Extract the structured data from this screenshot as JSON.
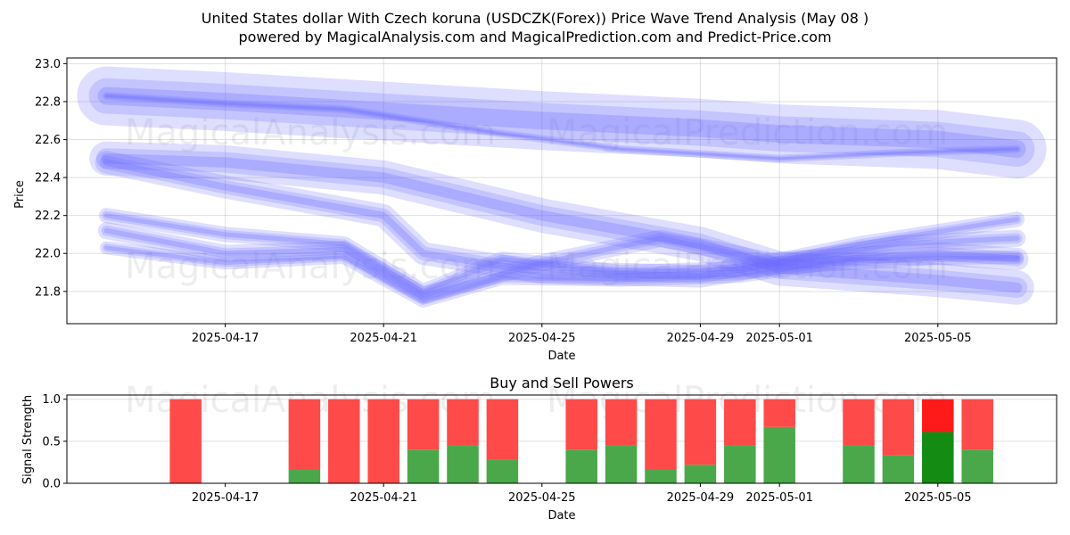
{
  "title_line1": "United States dollar With Czech koruna (USDCZK(Forex)) Price Wave Trend Analysis (May 08 )",
  "title_line2": "powered by MagicalAnalysis.com and MagicalPrediction.com and Predict-Price.com",
  "watermark_left": "MagicalAnalysis.com",
  "watermark_right": "MagicalPrediction.com",
  "colors": {
    "wave": "#6b6bff",
    "buy": "#4aa84a",
    "sell": "#ff4a4a",
    "buy_highlight": "#148c14",
    "sell_highlight": "#ff1a1a"
  },
  "chart_data": [
    {
      "type": "area",
      "title": "",
      "xlabel": "Date",
      "ylabel": "Price",
      "xlim": [
        "2025-04-13",
        "2025-05-08"
      ],
      "ylim": [
        21.63,
        23.03
      ],
      "x_ticks": [
        "2025-04-17",
        "2025-04-21",
        "2025-04-25",
        "2025-04-29",
        "2025-05-01",
        "2025-05-05"
      ],
      "y_ticks": [
        21.8,
        22.0,
        22.2,
        22.4,
        22.6,
        22.8,
        23.0
      ],
      "grid": true,
      "series": [
        {
          "x": [
            "2025-04-14",
            "2025-04-17",
            "2025-04-21",
            "2025-04-25",
            "2025-04-29",
            "2025-05-01",
            "2025-05-05",
            "2025-05-07"
          ],
          "values": [
            22.83,
            22.8,
            22.75,
            22.7,
            22.66,
            22.63,
            22.6,
            22.55
          ],
          "band": 0.31
        },
        {
          "x": [
            "2025-04-14",
            "2025-04-17",
            "2025-04-20",
            "2025-04-24",
            "2025-04-27",
            "2025-05-01",
            "2025-05-04",
            "2025-05-07"
          ],
          "values": [
            22.83,
            22.79,
            22.76,
            22.63,
            22.55,
            22.5,
            22.53,
            22.55
          ],
          "band": 0.04
        },
        {
          "x": [
            "2025-04-14",
            "2025-04-17",
            "2025-04-21",
            "2025-04-25",
            "2025-04-29",
            "2025-05-01",
            "2025-05-05",
            "2025-05-07"
          ],
          "values": [
            22.5,
            22.48,
            22.4,
            22.2,
            22.05,
            21.92,
            21.86,
            21.82
          ],
          "band": 0.18
        },
        {
          "x": [
            "2025-04-14",
            "2025-04-17",
            "2025-04-21",
            "2025-04-22",
            "2025-04-25",
            "2025-04-29",
            "2025-05-01",
            "2025-05-05",
            "2025-05-07"
          ],
          "values": [
            22.48,
            22.35,
            22.2,
            22.0,
            21.9,
            21.88,
            21.95,
            22.0,
            21.97
          ],
          "band": 0.12
        },
        {
          "x": [
            "2025-04-14",
            "2025-04-17",
            "2025-04-20",
            "2025-04-22",
            "2025-04-24",
            "2025-04-27",
            "2025-04-30",
            "2025-05-03",
            "2025-05-07"
          ],
          "values": [
            22.2,
            22.1,
            22.05,
            21.8,
            21.97,
            21.9,
            21.92,
            22.05,
            22.18
          ],
          "band": 0.08
        },
        {
          "x": [
            "2025-04-14",
            "2025-04-17",
            "2025-04-20",
            "2025-04-22",
            "2025-04-24",
            "2025-04-27",
            "2025-04-30",
            "2025-05-03",
            "2025-05-07"
          ],
          "values": [
            22.03,
            21.95,
            21.98,
            21.75,
            21.87,
            21.86,
            21.88,
            21.97,
            21.98
          ],
          "band": 0.07
        },
        {
          "x": [
            "2025-04-14",
            "2025-04-17",
            "2025-04-20",
            "2025-04-22",
            "2025-04-25",
            "2025-04-28",
            "2025-05-01",
            "2025-05-04",
            "2025-05-07"
          ],
          "values": [
            22.12,
            22.0,
            22.02,
            21.78,
            21.95,
            22.08,
            21.95,
            22.05,
            22.08
          ],
          "band": 0.09
        }
      ]
    },
    {
      "type": "bar",
      "title": "Buy and Sell Powers",
      "xlabel": "Date",
      "ylabel": "Signal Strength",
      "xlim": [
        "2025-04-13",
        "2025-05-08"
      ],
      "ylim": [
        0,
        1.05
      ],
      "x_ticks": [
        "2025-04-17",
        "2025-04-21",
        "2025-04-25",
        "2025-04-29",
        "2025-05-01",
        "2025-05-05"
      ],
      "y_ticks": [
        0.0,
        0.5,
        1.0
      ],
      "grid": true,
      "x": [
        "2025-04-16",
        "2025-04-19",
        "2025-04-20",
        "2025-04-21",
        "2025-04-22",
        "2025-04-23",
        "2025-04-24",
        "2025-04-26",
        "2025-04-27",
        "2025-04-28",
        "2025-04-29",
        "2025-04-30",
        "2025-05-01",
        "2025-05-03",
        "2025-05-04",
        "2025-05-05",
        "2025-05-06"
      ],
      "series": [
        {
          "name": "Buy",
          "values": [
            0.0,
            0.17,
            0.0,
            0.0,
            0.4,
            0.45,
            0.28,
            0.4,
            0.45,
            0.17,
            0.22,
            0.45,
            0.67,
            0.45,
            0.33,
            0.61,
            0.4
          ]
        },
        {
          "name": "Sell",
          "values": [
            1.0,
            0.83,
            1.0,
            1.0,
            0.6,
            0.55,
            0.72,
            0.6,
            0.55,
            0.83,
            0.78,
            0.55,
            0.33,
            0.55,
            0.67,
            0.39,
            0.6
          ]
        }
      ],
      "highlight_index": 15
    }
  ]
}
